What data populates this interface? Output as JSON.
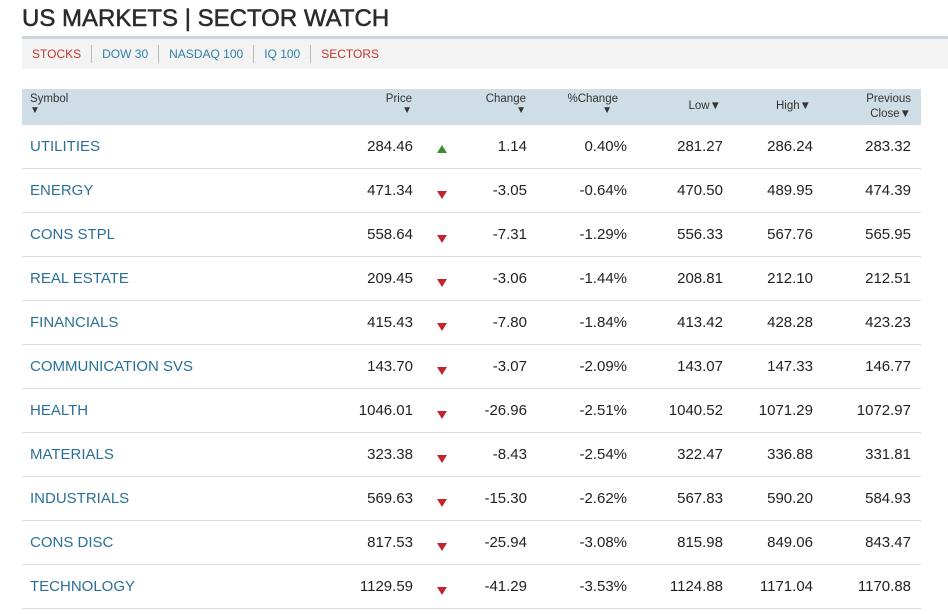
{
  "title": "US MARKETS | SECTOR WATCH",
  "nav": [
    {
      "label": "STOCKS",
      "color": "#c4362b"
    },
    {
      "label": "DOW 30",
      "color": "#2e7fa8"
    },
    {
      "label": "NASDAQ 100",
      "color": "#2e7fa8"
    },
    {
      "label": "IQ 100",
      "color": "#2e7fa8"
    },
    {
      "label": "SECTORS",
      "color": "#c4362b"
    }
  ],
  "headers": {
    "symbol": "Symbol",
    "price": "Price",
    "change": "Change",
    "pct_change": "%Change",
    "low": "Low",
    "high": "High",
    "prev_line1": "Previous",
    "prev_line2": "Close",
    "sort_glyph": "▼"
  },
  "colors": {
    "up": "#3a8d2f",
    "down": "#c0282d",
    "symbol_link": "#2a6f97",
    "header_bg": "#cfdde6"
  },
  "rows": [
    {
      "symbol": "UTILITIES",
      "price": "284.46",
      "dir": "up",
      "change": "1.14",
      "pct": "0.40%",
      "low": "281.27",
      "high": "286.24",
      "prev": "283.32"
    },
    {
      "symbol": "ENERGY",
      "price": "471.34",
      "dir": "down",
      "change": "-3.05",
      "pct": "-0.64%",
      "low": "470.50",
      "high": "489.95",
      "prev": "474.39"
    },
    {
      "symbol": "CONS STPL",
      "price": "558.64",
      "dir": "down",
      "change": "-7.31",
      "pct": "-1.29%",
      "low": "556.33",
      "high": "567.76",
      "prev": "565.95"
    },
    {
      "symbol": "REAL ESTATE",
      "price": "209.45",
      "dir": "down",
      "change": "-3.06",
      "pct": "-1.44%",
      "low": "208.81",
      "high": "212.10",
      "prev": "212.51"
    },
    {
      "symbol": "FINANCIALS",
      "price": "415.43",
      "dir": "down",
      "change": "-7.80",
      "pct": "-1.84%",
      "low": "413.42",
      "high": "428.28",
      "prev": "423.23"
    },
    {
      "symbol": "COMMUNICATION SVS",
      "price": "143.70",
      "dir": "down",
      "change": "-3.07",
      "pct": "-2.09%",
      "low": "143.07",
      "high": "147.33",
      "prev": "146.77"
    },
    {
      "symbol": "HEALTH",
      "price": "1046.01",
      "dir": "down",
      "change": "-26.96",
      "pct": "-2.51%",
      "low": "1040.52",
      "high": "1071.29",
      "prev": "1072.97"
    },
    {
      "symbol": "MATERIALS",
      "price": "323.38",
      "dir": "down",
      "change": "-8.43",
      "pct": "-2.54%",
      "low": "322.47",
      "high": "336.88",
      "prev": "331.81"
    },
    {
      "symbol": "INDUSTRIALS",
      "price": "569.63",
      "dir": "down",
      "change": "-15.30",
      "pct": "-2.62%",
      "low": "567.83",
      "high": "590.20",
      "prev": "584.93"
    },
    {
      "symbol": "CONS DISC",
      "price": "817.53",
      "dir": "down",
      "change": "-25.94",
      "pct": "-3.08%",
      "low": "815.98",
      "high": "849.06",
      "prev": "843.47"
    },
    {
      "symbol": "TECHNOLOGY",
      "price": "1129.59",
      "dir": "down",
      "change": "-41.29",
      "pct": "-3.53%",
      "low": "1124.88",
      "high": "1171.04",
      "prev": "1170.88"
    }
  ]
}
